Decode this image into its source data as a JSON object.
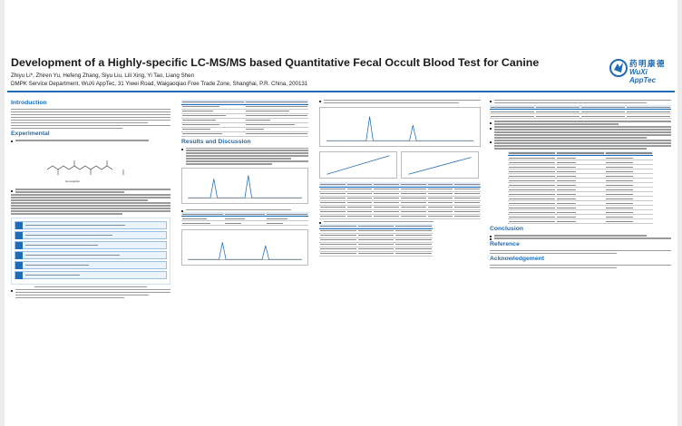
{
  "title": "Development of a Highly-specific LC-MS/MS based Quantitative Fecal Occult Blood Test for Canine",
  "authors": "Zhiyu Li*, Zhiren Yu, Hefeng Zhang, Siyu Liu, Lili Xing, Yi Tao, Liang Shen",
  "affiliation": "DMPK Service Department, WuXi AppTec, 31 Yiwei Road, Waigaoqiao Free Trade Zone, Shanghai, P.R. China, 200131",
  "logo": {
    "cn": "药明康德",
    "en": "WuXi AppTec",
    "color": "#1f6bb5"
  },
  "sections": {
    "introduction": "Introduction",
    "experimental": "Experimental",
    "results": "Results and Discussion",
    "conclusion": "Conclusion",
    "reference": "Reference",
    "acknowledgement": "Acknowledgement"
  },
  "accent_color": "#1f6bb5"
}
